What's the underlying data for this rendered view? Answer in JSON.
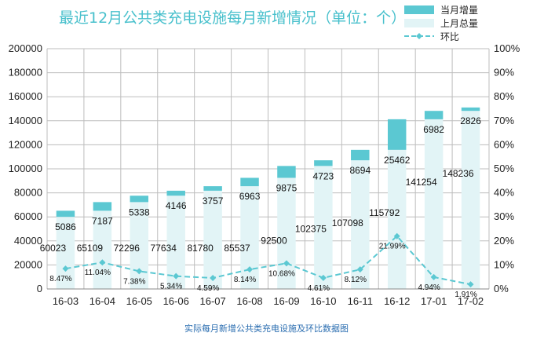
{
  "chart_data": {
    "type": "bar",
    "title": "最近12月公共类充电设施每月新增情况（单位：个）",
    "categories": [
      "16-03",
      "16-04",
      "16-05",
      "16-06",
      "16-07",
      "16-08",
      "16-09",
      "16-10",
      "16-11",
      "16-12",
      "17-01",
      "17-02"
    ],
    "series": [
      {
        "name": "当月增量",
        "values": [
          5086,
          7187,
          5338,
          4146,
          3757,
          6963,
          9875,
          4723,
          8694,
          25462,
          6982,
          2826
        ]
      },
      {
        "name": "上月总量",
        "values": [
          60023,
          65109,
          72296,
          77634,
          81780,
          85537,
          92500,
          102375,
          107098,
          115792,
          141254,
          148236
        ]
      },
      {
        "name": "环比",
        "values": [
          8.47,
          11.04,
          7.38,
          5.34,
          4.59,
          8.14,
          10.68,
          4.61,
          8.12,
          21.99,
          4.94,
          1.91
        ],
        "labels": [
          "8.47%",
          "11.04%",
          "7.38%",
          "5.34%",
          "4.59%",
          "8.14%",
          "10.68%",
          "4.61%",
          "8.12%",
          "21.99%",
          "4.94%",
          "1.91%"
        ]
      }
    ],
    "y_left": {
      "min": 0,
      "max": 200000,
      "ticks": [
        "0",
        "20000",
        "40000",
        "60000",
        "80000",
        "100000",
        "120000",
        "140000",
        "160000",
        "180000",
        "200000"
      ]
    },
    "y_right": {
      "min": 0,
      "max": 100,
      "ticks": [
        "0%",
        "10%",
        "20%",
        "30%",
        "40%",
        "50%",
        "60%",
        "70%",
        "80%",
        "90%",
        "100%"
      ]
    },
    "grid": true,
    "legend_position": "top-right"
  },
  "colors": {
    "increment": "#5bc8d2",
    "total": "#e2f4f6",
    "ratio": "#5bc8d2",
    "title": "#48c0cc",
    "caption": "#2a6db0"
  },
  "caption": "实际每月新增公共类充电设施及环比数据图"
}
